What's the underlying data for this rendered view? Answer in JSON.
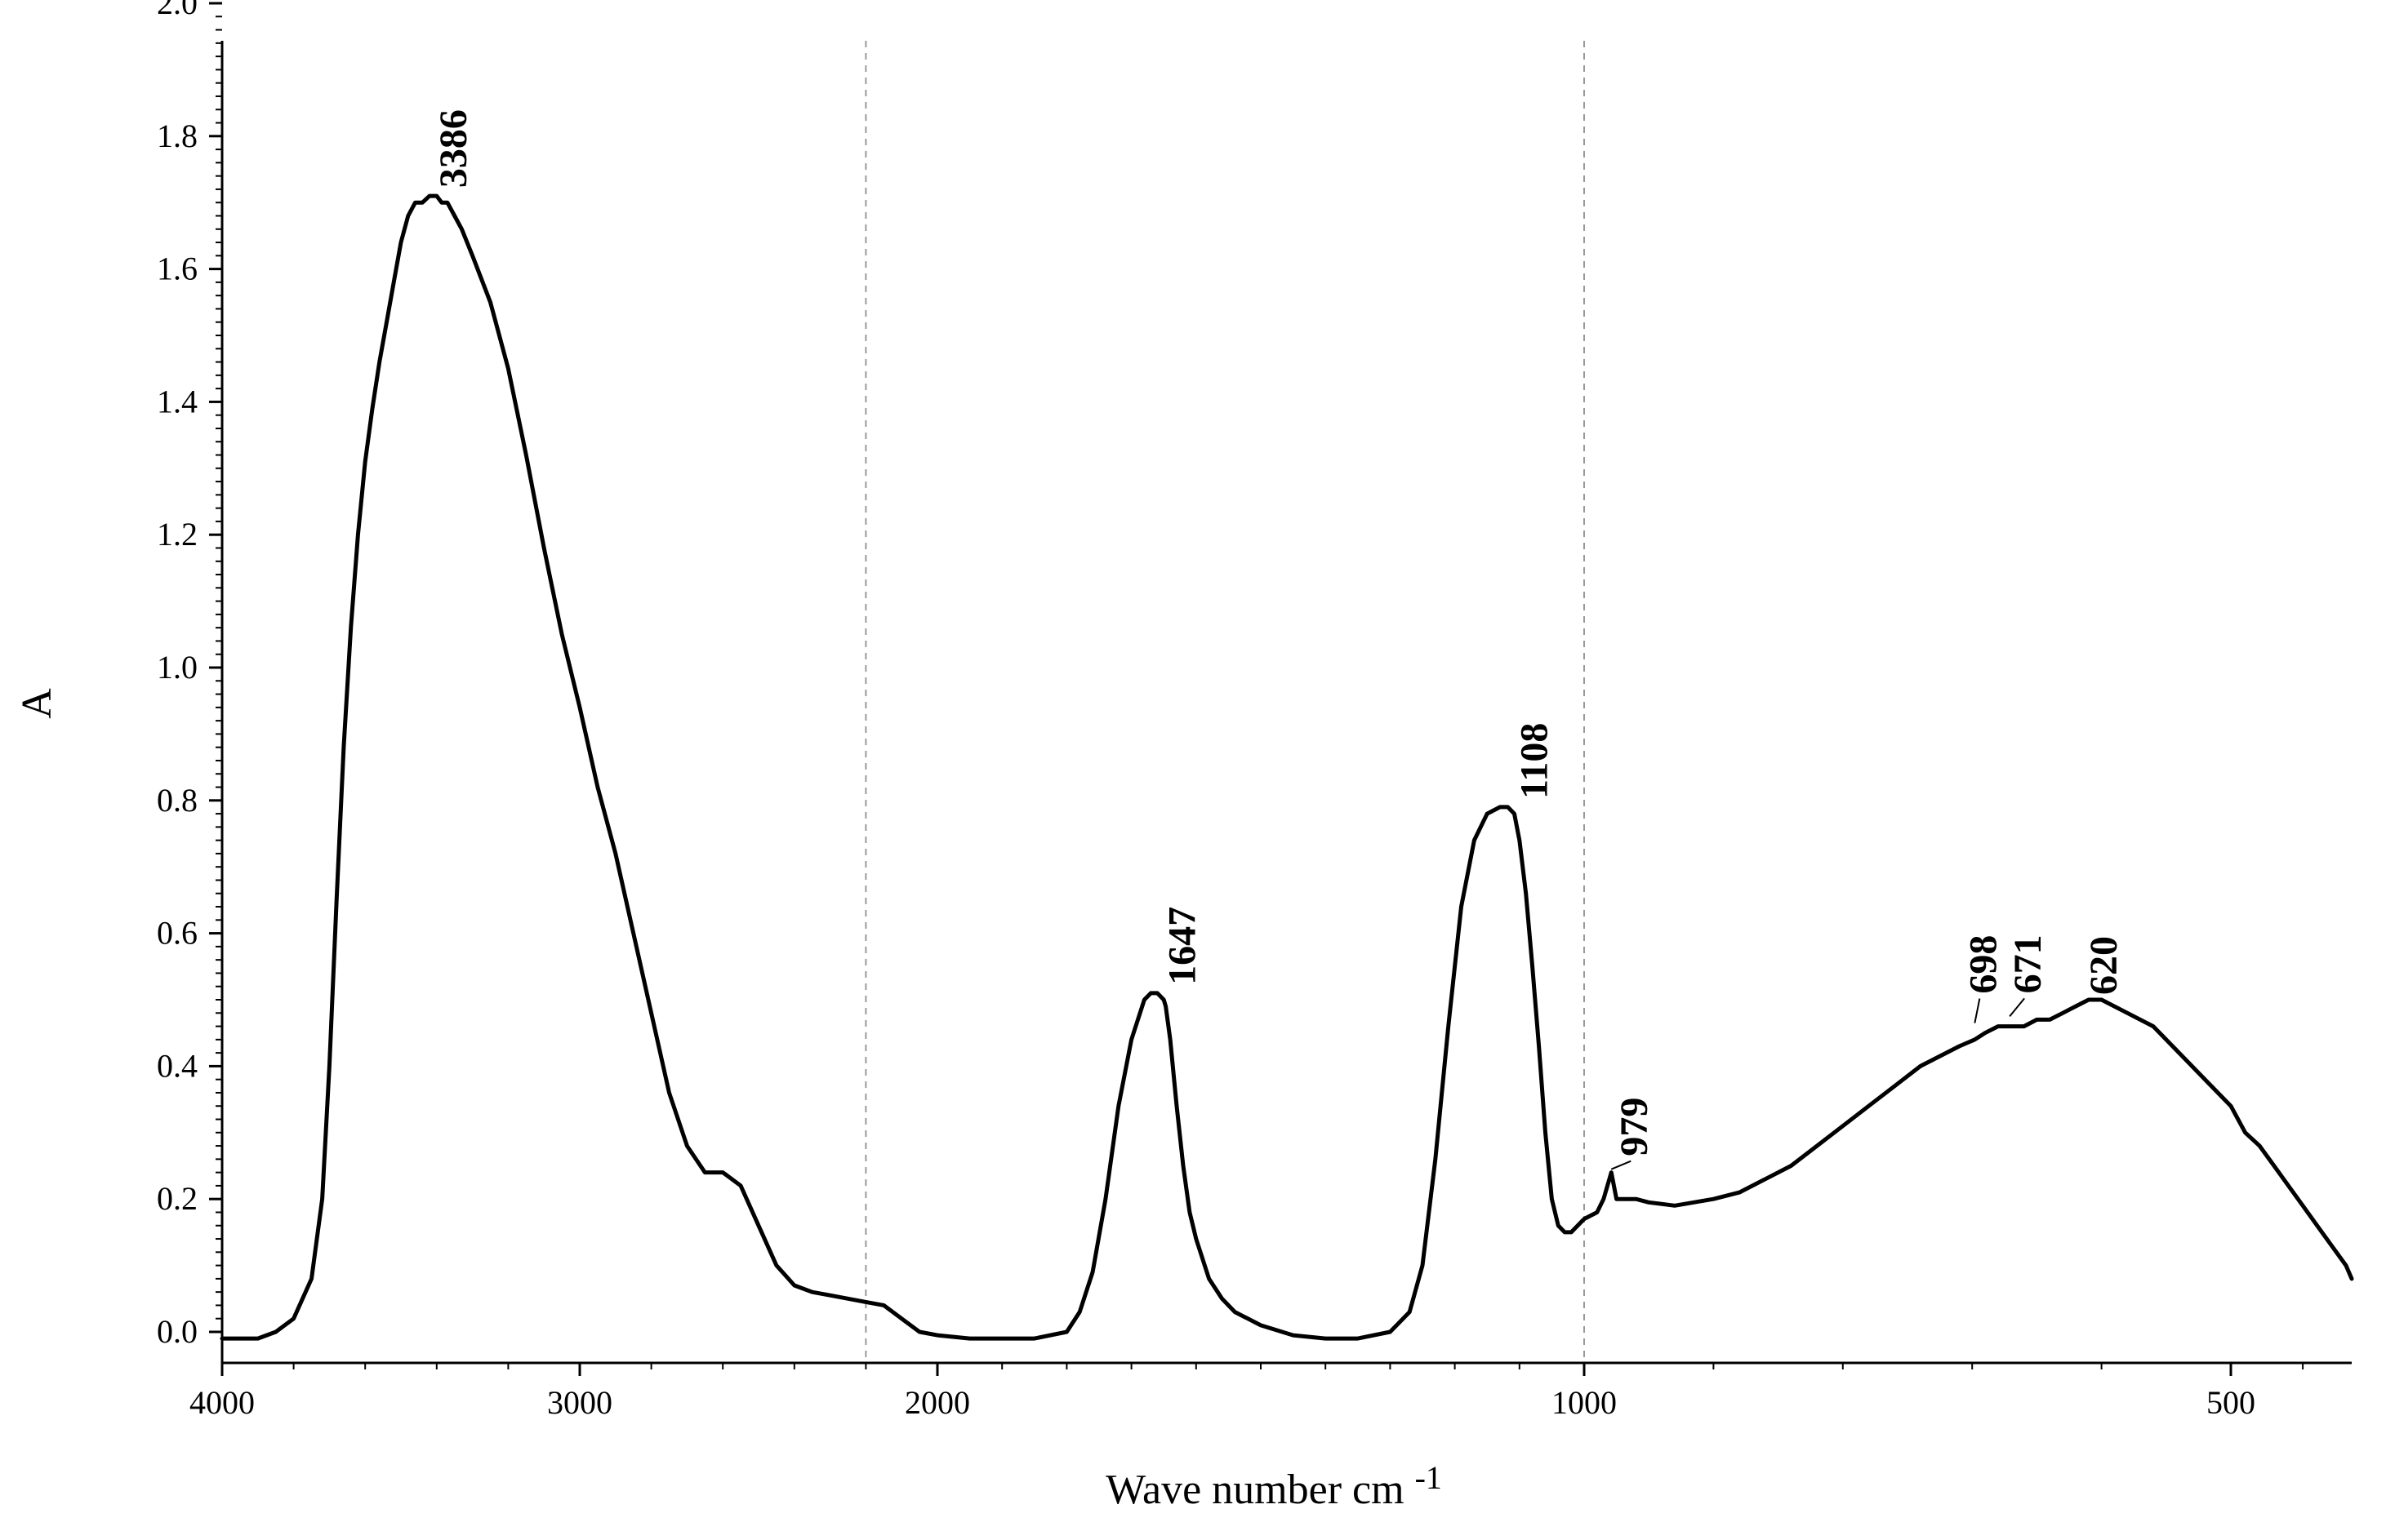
{
  "chart_data": {
    "type": "line",
    "title": "",
    "xlabel": "Wave number cm",
    "xlabel_superscript": "-1",
    "ylabel": "A",
    "x_reversed": true,
    "xlim": [
      4000,
      332
    ],
    "ylim": [
      -0.03,
      2.07
    ],
    "x_scale": "piecewise-linear",
    "x_scale_breaks": [
      {
        "from": 4000,
        "to": 2000,
        "note": "compressed region"
      },
      {
        "from": 2000,
        "to": 332,
        "note": "expanded region"
      }
    ],
    "x_ticks": [
      4000,
      3000,
      2000,
      1000,
      500
    ],
    "x_tick_labels": [
      "4000",
      "3000",
      "2000",
      "1000",
      "500"
    ],
    "y_ticks": [
      0.0,
      0.2,
      0.4,
      0.6,
      0.8,
      1.0,
      1.2,
      1.4,
      1.6,
      1.8,
      2.0
    ],
    "y_tick_labels": [
      "0.0",
      "0.2",
      "0.4",
      "0.6",
      "0.8",
      "1.0",
      "1.2",
      "1.4",
      "1.6",
      "1.8",
      "2.0"
    ],
    "vertical_reference_lines": [
      2200,
      1000
    ],
    "grid": false,
    "legend": "none",
    "line_color": "#000000",
    "series": [
      {
        "x": [
          4000,
          3950,
          3900,
          3850,
          3800,
          3750,
          3720,
          3700,
          3680,
          3660,
          3640,
          3620,
          3600,
          3580,
          3560,
          3540,
          3520,
          3500,
          3480,
          3460,
          3440,
          3420,
          3400,
          3386,
          3370,
          3350,
          3330,
          3300,
          3250,
          3200,
          3150,
          3100,
          3050,
          3000,
          2950,
          2900,
          2850,
          2800,
          2750,
          2700,
          2650,
          2600,
          2550,
          2500,
          2450,
          2400,
          2350,
          2300,
          2250,
          2200,
          2150,
          2100,
          2050,
          2000,
          1950,
          1900,
          1850,
          1800,
          1780,
          1760,
          1740,
          1720,
          1700,
          1680,
          1670,
          1660,
          1650,
          1647,
          1640,
          1630,
          1620,
          1610,
          1600,
          1580,
          1560,
          1540,
          1500,
          1450,
          1400,
          1350,
          1300,
          1270,
          1250,
          1230,
          1210,
          1190,
          1170,
          1150,
          1130,
          1118,
          1108,
          1100,
          1090,
          1080,
          1070,
          1060,
          1050,
          1040,
          1030,
          1020,
          1010,
          1000,
          990,
          985,
          979,
          975,
          970,
          960,
          950,
          930,
          900,
          880,
          860,
          840,
          820,
          800,
          780,
          760,
          740,
          720,
          710,
          698,
          690,
          680,
          671,
          660,
          650,
          640,
          630,
          620,
          610,
          600,
          580,
          560,
          540,
          520,
          500,
          480,
          460,
          440,
          420,
          400,
          380,
          360,
          340,
          332
        ],
        "y": [
          -0.01,
          -0.01,
          -0.01,
          0.0,
          0.02,
          0.08,
          0.2,
          0.4,
          0.65,
          0.88,
          1.06,
          1.2,
          1.31,
          1.39,
          1.46,
          1.52,
          1.58,
          1.64,
          1.68,
          1.7,
          1.7,
          1.71,
          1.71,
          1.7,
          1.7,
          1.68,
          1.66,
          1.62,
          1.55,
          1.45,
          1.32,
          1.18,
          1.05,
          0.94,
          0.82,
          0.72,
          0.6,
          0.48,
          0.36,
          0.28,
          0.24,
          0.24,
          0.22,
          0.16,
          0.1,
          0.07,
          0.06,
          0.055,
          0.05,
          0.045,
          0.04,
          0.02,
          0.0,
          -0.005,
          -0.01,
          -0.01,
          -0.01,
          0.0,
          0.03,
          0.09,
          0.2,
          0.34,
          0.44,
          0.5,
          0.51,
          0.51,
          0.5,
          0.49,
          0.44,
          0.34,
          0.25,
          0.18,
          0.14,
          0.08,
          0.05,
          0.03,
          0.01,
          -0.005,
          -0.01,
          -0.01,
          0.0,
          0.03,
          0.1,
          0.26,
          0.46,
          0.64,
          0.74,
          0.78,
          0.79,
          0.79,
          0.78,
          0.74,
          0.66,
          0.55,
          0.43,
          0.3,
          0.2,
          0.16,
          0.15,
          0.15,
          0.16,
          0.17,
          0.18,
          0.2,
          0.24,
          0.2,
          0.2,
          0.2,
          0.195,
          0.19,
          0.2,
          0.21,
          0.23,
          0.25,
          0.28,
          0.31,
          0.34,
          0.37,
          0.4,
          0.42,
          0.43,
          0.44,
          0.45,
          0.46,
          0.46,
          0.46,
          0.47,
          0.47,
          0.48,
          0.49,
          0.5,
          0.5,
          0.48,
          0.46,
          0.42,
          0.38,
          0.34,
          0.3,
          0.28,
          0.25,
          0.22,
          0.19,
          0.16,
          0.13,
          0.1,
          0.08
        ]
      }
    ],
    "annotations": [
      {
        "text": "3386",
        "x": 3386,
        "y": 1.71,
        "leader": false
      },
      {
        "text": "1647",
        "x": 1647,
        "y": 0.51,
        "leader": false
      },
      {
        "text": "1108",
        "x": 1108,
        "y": 0.79,
        "leader": false
      },
      {
        "text": "979",
        "x": 979,
        "y": 0.24,
        "leader": true
      },
      {
        "text": "698",
        "x": 698,
        "y": 0.46,
        "leader": true
      },
      {
        "text": "671",
        "x": 671,
        "y": 0.47,
        "leader": true
      },
      {
        "text": "620",
        "x": 620,
        "y": 0.5,
        "leader": false
      }
    ]
  }
}
